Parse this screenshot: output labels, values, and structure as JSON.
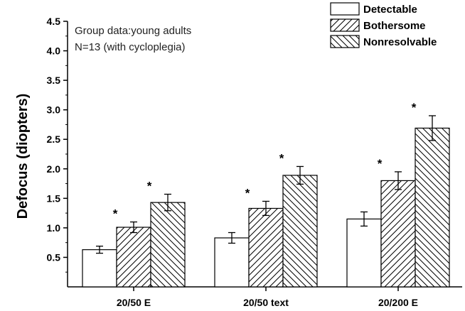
{
  "chart_data": {
    "type": "bar",
    "title": "",
    "xlabel": "",
    "ylabel": "Defocus (diopters)",
    "ylim": [
      0,
      4.5
    ],
    "yticks": [
      "0.5",
      "1.0",
      "1.5",
      "2.0",
      "2.5",
      "3.0",
      "3.5",
      "4.0",
      "4.5"
    ],
    "categories": [
      "20/50 E",
      "20/50 text",
      "20/200 E"
    ],
    "series": [
      {
        "name": "Detectable",
        "values": [
          0.63,
          0.83,
          1.15
        ],
        "errors": [
          0.06,
          0.09,
          0.12
        ],
        "significant": [
          false,
          false,
          false
        ],
        "fill": "empty"
      },
      {
        "name": "Bothersome",
        "values": [
          1.01,
          1.33,
          1.8
        ],
        "errors": [
          0.09,
          0.12,
          0.15
        ],
        "significant": [
          true,
          true,
          true
        ],
        "fill": "hatch-forward"
      },
      {
        "name": "Nonresolvable",
        "values": [
          1.43,
          1.89,
          2.69
        ],
        "errors": [
          0.14,
          0.15,
          0.21
        ],
        "significant": [
          true,
          true,
          true
        ],
        "fill": "hatch-backward"
      }
    ],
    "significance_marker": "*",
    "annotations": [
      "Group data:young adults",
      "N=13 (with cycloplegia)"
    ],
    "legend_position": "top-right",
    "grid": false,
    "colors": {
      "stroke": "#000000",
      "background": "#ffffff"
    }
  }
}
